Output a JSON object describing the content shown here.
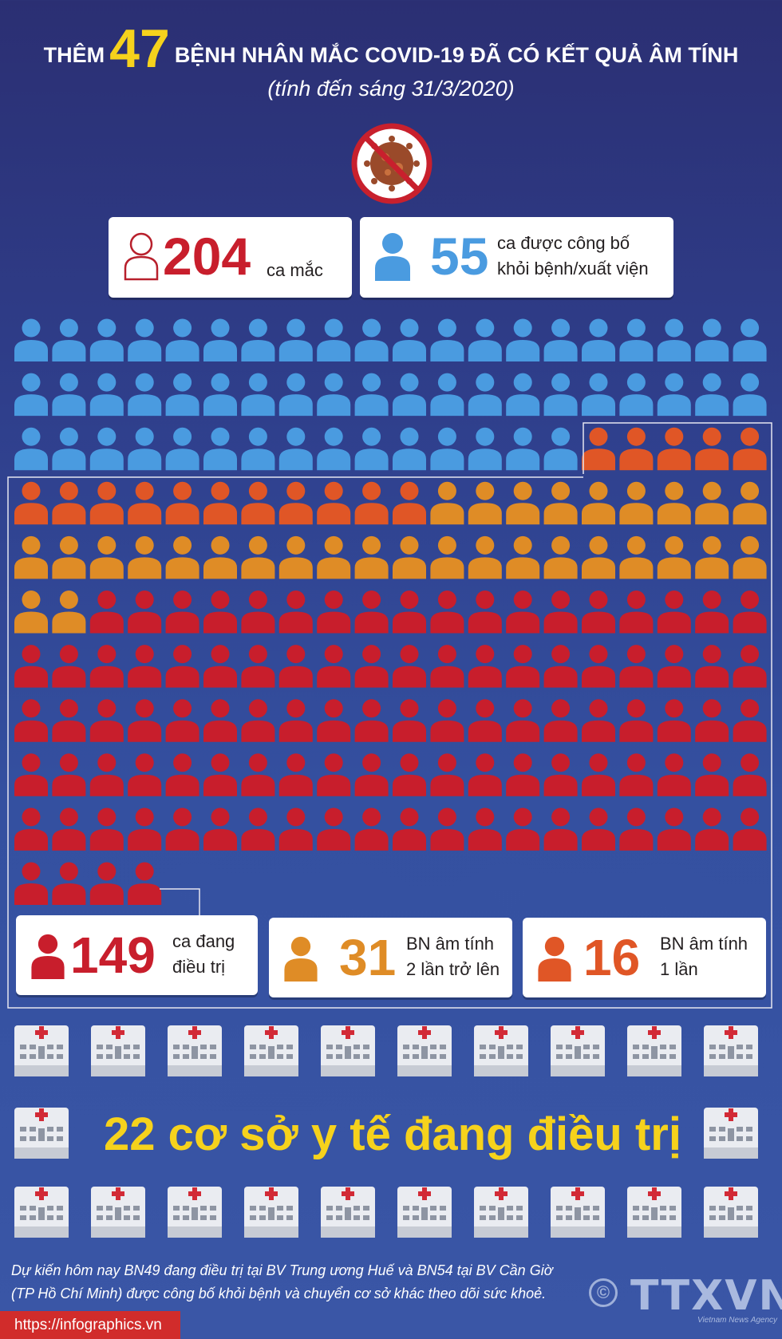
{
  "header": {
    "prefix": "THÊM",
    "number": "47",
    "suffix": "BỆNH NHÂN MẮC COVID-19 ĐÃ CÓ KẾT QUẢ ÂM TÍNH",
    "date": "(tính đến sáng 31/3/2020)"
  },
  "stats_top": {
    "total": {
      "value": "204",
      "label": "ca mắc"
    },
    "recovered": {
      "value": "55",
      "label_line1": "ca được công bố",
      "label_line2": "khỏi bệnh/xuất viện"
    }
  },
  "stats_bottom": {
    "treating": {
      "value": "149",
      "label_line1": "ca đang",
      "label_line2": "điều trị"
    },
    "neg_twice": {
      "value": "31",
      "label_line1": "BN âm tính",
      "label_line2": "2 lần trở lên"
    },
    "neg_once": {
      "value": "16",
      "label_line1": "BN âm tính",
      "label_line2": "1 lần"
    }
  },
  "waffle": {
    "columns": 20,
    "recovered_count": 55,
    "neg_once_count": 16,
    "neg_twice_count": 31,
    "treating_count": 102
  },
  "colors": {
    "recovered": "#4a9be0",
    "neg_once": "#e05626",
    "neg_twice": "#df8c26",
    "treating": "#c81e2c",
    "accent_yellow": "#f6d21c",
    "background": "#2f3f8c"
  },
  "hospitals": {
    "caption": "22 cơ sở y tế đang điều trị",
    "count": 22
  },
  "footer": {
    "note_line1": "Dự kiến hôm nay BN49 đang điều trị tại BV Trung ương Huế và BN54 tại BV Cần Giờ",
    "note_line2": "(TP Hồ Chí Minh) được công bố khỏi bệnh và chuyển cơ sở khác theo dõi sức khoẻ.",
    "url": "https://infographics.vn",
    "logo_text": "TTXVN",
    "logo_sub": "Vietnam News Agency",
    "copyright_symbol": "©"
  },
  "icons": {
    "virus": "no-virus-icon",
    "person": "person-icon",
    "hospital": "hospital-icon"
  }
}
